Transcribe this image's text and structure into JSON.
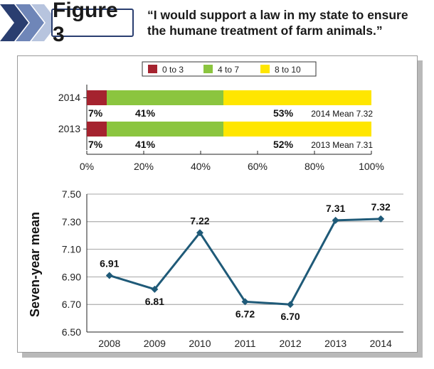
{
  "header": {
    "figure_label": "Figure 3",
    "question": "“I would support a law in my state to ensure the humane treatment of farm animals.”"
  },
  "colors": {
    "header_chevron": "#2a3e70",
    "low": "#a5232f",
    "mid": "#8bc53f",
    "high": "#ffe600",
    "line": "#1f5a78"
  },
  "chart_data": [
    {
      "type": "bar",
      "orientation": "horizontal",
      "stacked": true,
      "legend": {
        "placement": "top",
        "entries": [
          "0 to 3",
          "4 to 7",
          "8 to 10"
        ]
      },
      "categories": [
        "2014",
        "2013"
      ],
      "series": [
        {
          "name": "0 to 3",
          "values": [
            7,
            7
          ],
          "labels": [
            "7%",
            "7%"
          ]
        },
        {
          "name": "4 to 7",
          "values": [
            41,
            41
          ],
          "labels": [
            "41%",
            "41%"
          ]
        },
        {
          "name": "8 to 10",
          "values": [
            53,
            52
          ],
          "labels": [
            "53%",
            "52%"
          ]
        }
      ],
      "annotations": [
        "2014 Mean 7.32",
        "2013 Mean 7.31"
      ],
      "xlim": [
        0,
        100
      ],
      "xticks": [
        "0%",
        "20%",
        "40%",
        "60%",
        "80%",
        "100%"
      ]
    },
    {
      "type": "line",
      "ylabel": "Seven-year mean",
      "x": [
        "2008",
        "2009",
        "2010",
        "2011",
        "2012",
        "2013",
        "2014"
      ],
      "y": [
        6.91,
        6.81,
        7.22,
        6.72,
        6.7,
        7.31,
        7.32
      ],
      "labels": [
        "6.91",
        "6.81",
        "7.22",
        "6.72",
        "6.70",
        "7.31",
        "7.32"
      ],
      "ylim": [
        6.5,
        7.5
      ],
      "yticks": [
        "6.50",
        "6.70",
        "6.90",
        "7.10",
        "7.30",
        "7.50"
      ],
      "grid": true
    }
  ]
}
